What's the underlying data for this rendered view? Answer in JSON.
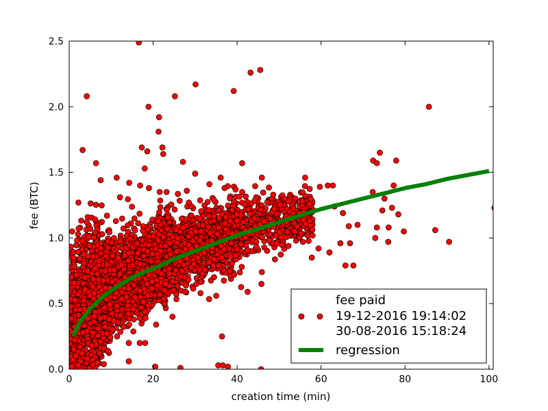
{
  "chart_data": {
    "type": "scatter",
    "title": "",
    "xlabel": "creation time (min)",
    "ylabel": "fee (BTC)",
    "xlim": [
      0,
      101
    ],
    "ylim": [
      0,
      2.5
    ],
    "xticks": [
      0,
      20,
      40,
      60,
      80,
      100
    ],
    "xtick_labels": [
      "0",
      "20",
      "40",
      "60",
      "80",
      "100"
    ],
    "yticks": [
      0.0,
      0.5,
      1.0,
      1.5,
      2.0,
      2.5
    ],
    "ytick_labels": [
      "0.0",
      "0.5",
      "1.0",
      "1.5",
      "2.0",
      "2.5"
    ],
    "grid": false,
    "legend_position": "lower-right",
    "series": [
      {
        "name": "fee paid\n19-12-2016 19:14:02\n30-08-2016 15:18:24",
        "name_lines": [
          "fee paid",
          "19-12-2016 19:14:02",
          "30-08-2016 15:18:24"
        ],
        "type": "scatter",
        "color": "#ff0000",
        "edge_color": "#000000",
        "points": [
          [
            16.6,
            2.49
          ],
          [
            4.2,
            2.08
          ],
          [
            25.2,
            2.08
          ],
          [
            30.1,
            2.17
          ],
          [
            39.2,
            2.12
          ],
          [
            43.2,
            2.26
          ],
          [
            45.5,
            2.28
          ],
          [
            18.9,
            2.0
          ],
          [
            21.4,
            1.92
          ],
          [
            21.3,
            1.81
          ],
          [
            85.7,
            2.0
          ],
          [
            3.2,
            1.67
          ],
          [
            17.3,
            1.69
          ],
          [
            22.2,
            1.69
          ],
          [
            22.4,
            1.64
          ],
          [
            18.6,
            1.66
          ],
          [
            6.4,
            1.57
          ],
          [
            18.0,
            1.53
          ],
          [
            27.1,
            1.58
          ],
          [
            41.2,
            1.57
          ],
          [
            74.0,
            1.65
          ],
          [
            72.4,
            1.59
          ],
          [
            73.3,
            1.57
          ],
          [
            77.9,
            1.59
          ],
          [
            11.3,
            1.46
          ],
          [
            7.5,
            1.44
          ],
          [
            14.3,
            1.42
          ],
          [
            30.0,
            1.49
          ],
          [
            36.1,
            1.46
          ],
          [
            45.9,
            1.46
          ],
          [
            56.2,
            1.46
          ],
          [
            59.7,
            1.39
          ],
          [
            61.6,
            1.4
          ],
          [
            62.8,
            1.4
          ],
          [
            77.3,
            1.4
          ],
          [
            72.3,
            1.35
          ],
          [
            16.9,
            1.4
          ],
          [
            19.0,
            1.38
          ],
          [
            23.2,
            1.35
          ],
          [
            33.4,
            1.41
          ],
          [
            37.0,
            1.38
          ],
          [
            48.6,
            1.33
          ],
          [
            75.1,
            1.3
          ],
          [
            2.2,
            1.27
          ],
          [
            12.1,
            1.31
          ],
          [
            28.5,
            1.27
          ],
          [
            52.3,
            1.28
          ],
          [
            55.6,
            1.28
          ],
          [
            63.2,
            1.24
          ],
          [
            65.2,
            1.19
          ],
          [
            74.6,
            1.21
          ],
          [
            76.9,
            1.23
          ],
          [
            78.4,
            1.18
          ],
          [
            58.2,
            1.21
          ],
          [
            48.9,
            1.22
          ],
          [
            0.7,
            1.05
          ],
          [
            5.0,
            1.07
          ],
          [
            4.2,
            1.12
          ],
          [
            9.0,
            1.17
          ],
          [
            66.6,
            1.09
          ],
          [
            68.7,
            1.1
          ],
          [
            73.3,
            1.08
          ],
          [
            76.1,
            1.08
          ],
          [
            79.7,
            1.05
          ],
          [
            87.2,
            1.06
          ],
          [
            72.9,
            1.0
          ],
          [
            76.0,
            0.97
          ],
          [
            90.5,
            0.97
          ],
          [
            101.3,
            1.23
          ],
          [
            64.6,
            0.96
          ],
          [
            66.9,
            0.96
          ],
          [
            59.4,
            0.92
          ],
          [
            62.0,
            0.89
          ],
          [
            57.8,
            0.85
          ],
          [
            65.8,
            0.79
          ],
          [
            67.7,
            0.79
          ],
          [
            39.3,
            0.72
          ],
          [
            41.1,
            0.78
          ],
          [
            45.9,
            0.74
          ],
          [
            45.8,
            0.65
          ],
          [
            42.5,
            0.59
          ],
          [
            31.3,
            0.58
          ],
          [
            27.6,
            0.59
          ],
          [
            24.6,
            0.4
          ],
          [
            22.7,
            0.5
          ],
          [
            16.8,
            0.39
          ],
          [
            18.2,
            0.39
          ],
          [
            12.2,
            0.41
          ],
          [
            9.5,
            0.38
          ],
          [
            6.9,
            0.31
          ],
          [
            11.4,
            0.25
          ],
          [
            16.8,
            0.2
          ],
          [
            14.2,
            0.2
          ],
          [
            18.1,
            0.2
          ],
          [
            9.2,
            0.14
          ],
          [
            4.3,
            0.08
          ],
          [
            6.7,
            0.05
          ],
          [
            14.2,
            0.06
          ],
          [
            20.5,
            0.02
          ],
          [
            26.5,
            0.01
          ],
          [
            35.5,
            0.03
          ],
          [
            36.6,
            0.03
          ],
          [
            37.8,
            0.02
          ],
          [
            45.7,
            0.0
          ],
          [
            36.4,
            0.25
          ],
          [
            1.2,
            0.04
          ],
          [
            2.2,
            0.03
          ],
          [
            0.6,
            0.02
          ],
          [
            0.9,
            0.07
          ],
          [
            1.6,
            0.1
          ],
          [
            1.1,
            0.15
          ],
          [
            2.6,
            0.17
          ],
          [
            1.3,
            0.22
          ],
          [
            3.3,
            0.28
          ],
          [
            5.4,
            0.18
          ]
        ]
      },
      {
        "name": "regression",
        "type": "line",
        "color": "#008000",
        "x": [
          1,
          2,
          3,
          4,
          5,
          6,
          8,
          10,
          12,
          15,
          18,
          21,
          25,
          30,
          35,
          40,
          45,
          50,
          55,
          60,
          65,
          70,
          75,
          80,
          85,
          90,
          95,
          100
        ],
        "y": [
          0.25,
          0.33,
          0.38,
          0.42,
          0.46,
          0.49,
          0.55,
          0.6,
          0.64,
          0.7,
          0.74,
          0.78,
          0.84,
          0.9,
          0.96,
          1.02,
          1.07,
          1.12,
          1.17,
          1.22,
          1.26,
          1.3,
          1.34,
          1.38,
          1.41,
          1.45,
          1.48,
          1.51
        ]
      }
    ]
  }
}
